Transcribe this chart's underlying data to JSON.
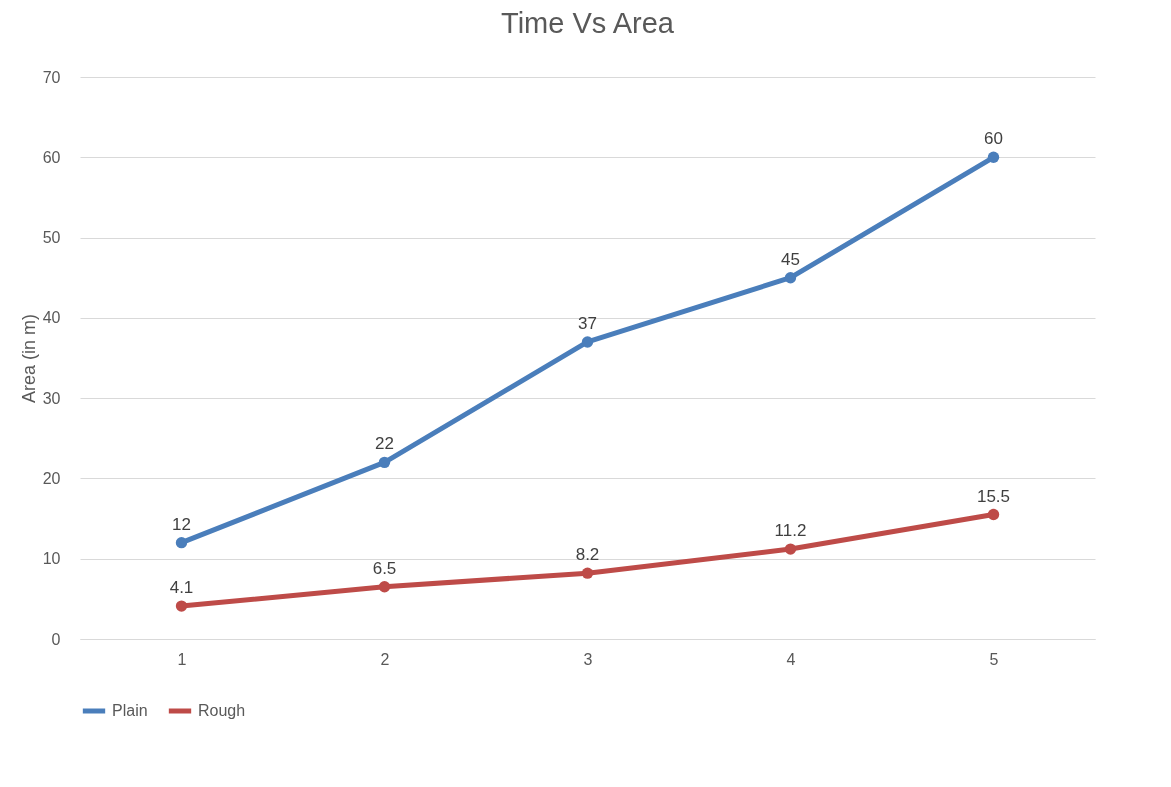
{
  "chart_data": {
    "type": "line",
    "title": "Time Vs Area",
    "ylabel": "Area (in m)",
    "categories": [
      "1",
      "2",
      "3",
      "4",
      "5"
    ],
    "series": [
      {
        "name": "Plain",
        "color": "#4a7ebb",
        "values": [
          12,
          22,
          37,
          45,
          60
        ]
      },
      {
        "name": "Rough",
        "color": "#be4b48",
        "values": [
          4.1,
          6.5,
          8.2,
          11.2,
          15.5
        ]
      }
    ],
    "ylim": [
      0,
      70
    ],
    "yticks": [
      0,
      10,
      20,
      30,
      40,
      50,
      60,
      70
    ],
    "grid": "y",
    "legend": "bottom",
    "marker": "circle",
    "line_style": "solid",
    "data_labels": true
  }
}
